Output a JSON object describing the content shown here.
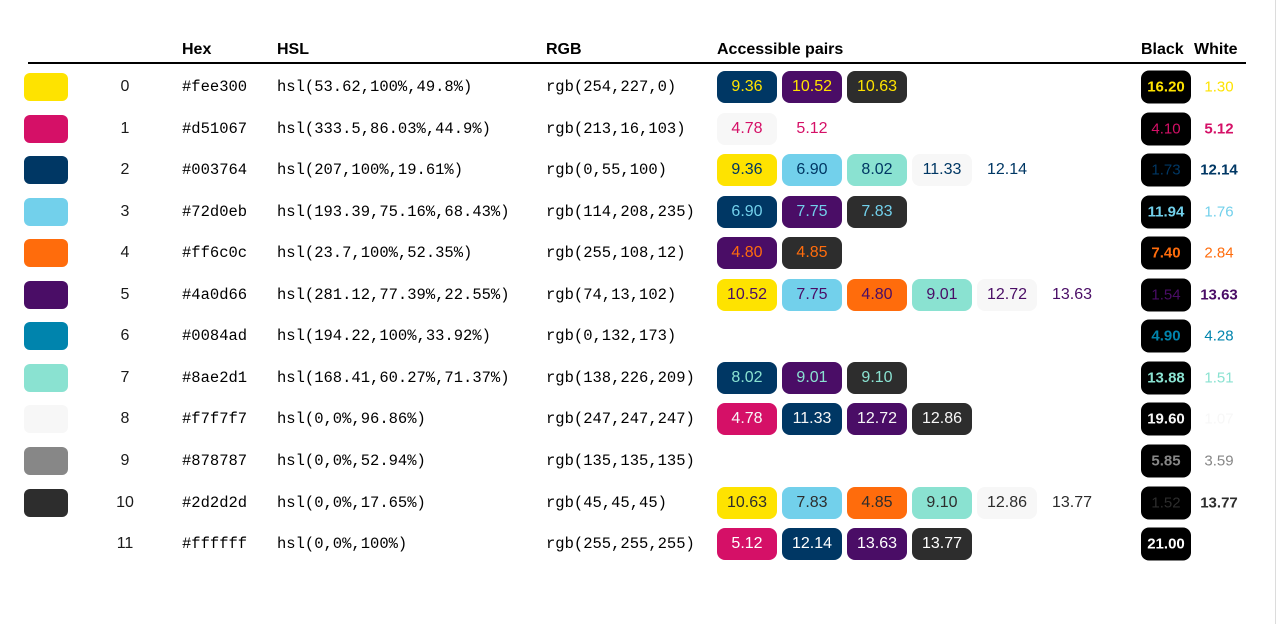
{
  "chart_data": {
    "type": "table",
    "headers": {
      "hex": "Hex",
      "hsl": "HSL",
      "rgb": "RGB",
      "pairs": "Accessible pairs",
      "black": "Black",
      "white": "White"
    },
    "reference_colors": {
      "black": "#000000",
      "white": "#ffffff"
    },
    "bold_min_ratio": 4.5,
    "colors": [
      {
        "index": "0",
        "hex": "#fee300",
        "hsl": "hsl(53.62,100%,49.8%)",
        "rgb": "rgb(254,227,0)",
        "pairs": [
          {
            "ratio": "9.36",
            "with": "#003764"
          },
          {
            "ratio": "10.52",
            "with": "#4a0d66"
          },
          {
            "ratio": "10.63",
            "with": "#2d2d2d"
          }
        ],
        "black": "16.20",
        "white": "1.30"
      },
      {
        "index": "1",
        "hex": "#d51067",
        "hsl": "hsl(333.5,86.03%,44.9%)",
        "rgb": "rgb(213,16,103)",
        "pairs": [
          {
            "ratio": "4.78",
            "with": "#f7f7f7"
          },
          {
            "ratio": "5.12",
            "with": "#ffffff"
          }
        ],
        "black": "4.10",
        "white": "5.12"
      },
      {
        "index": "2",
        "hex": "#003764",
        "hsl": "hsl(207,100%,19.61%)",
        "rgb": "rgb(0,55,100)",
        "pairs": [
          {
            "ratio": "9.36",
            "with": "#fee300"
          },
          {
            "ratio": "6.90",
            "with": "#72d0eb"
          },
          {
            "ratio": "8.02",
            "with": "#8ae2d1"
          },
          {
            "ratio": "11.33",
            "with": "#f7f7f7"
          },
          {
            "ratio": "12.14",
            "with": "#ffffff"
          }
        ],
        "black": "1.73",
        "white": "12.14"
      },
      {
        "index": "3",
        "hex": "#72d0eb",
        "hsl": "hsl(193.39,75.16%,68.43%)",
        "rgb": "rgb(114,208,235)",
        "pairs": [
          {
            "ratio": "6.90",
            "with": "#003764"
          },
          {
            "ratio": "7.75",
            "with": "#4a0d66"
          },
          {
            "ratio": "7.83",
            "with": "#2d2d2d"
          }
        ],
        "black": "11.94",
        "white": "1.76"
      },
      {
        "index": "4",
        "hex": "#ff6c0c",
        "hsl": "hsl(23.7,100%,52.35%)",
        "rgb": "rgb(255,108,12)",
        "pairs": [
          {
            "ratio": "4.80",
            "with": "#4a0d66"
          },
          {
            "ratio": "4.85",
            "with": "#2d2d2d"
          }
        ],
        "black": "7.40",
        "white": "2.84"
      },
      {
        "index": "5",
        "hex": "#4a0d66",
        "hsl": "hsl(281.12,77.39%,22.55%)",
        "rgb": "rgb(74,13,102)",
        "pairs": [
          {
            "ratio": "10.52",
            "with": "#fee300"
          },
          {
            "ratio": "7.75",
            "with": "#72d0eb"
          },
          {
            "ratio": "4.80",
            "with": "#ff6c0c"
          },
          {
            "ratio": "9.01",
            "with": "#8ae2d1"
          },
          {
            "ratio": "12.72",
            "with": "#f7f7f7"
          },
          {
            "ratio": "13.63",
            "with": "#ffffff"
          }
        ],
        "black": "1.54",
        "white": "13.63"
      },
      {
        "index": "6",
        "hex": "#0084ad",
        "hsl": "hsl(194.22,100%,33.92%)",
        "rgb": "rgb(0,132,173)",
        "pairs": [],
        "black": "4.90",
        "white": "4.28"
      },
      {
        "index": "7",
        "hex": "#8ae2d1",
        "hsl": "hsl(168.41,60.27%,71.37%)",
        "rgb": "rgb(138,226,209)",
        "pairs": [
          {
            "ratio": "8.02",
            "with": "#003764"
          },
          {
            "ratio": "9.01",
            "with": "#4a0d66"
          },
          {
            "ratio": "9.10",
            "with": "#2d2d2d"
          }
        ],
        "black": "13.88",
        "white": "1.51"
      },
      {
        "index": "8",
        "hex": "#f7f7f7",
        "hsl": "hsl(0,0%,96.86%)",
        "rgb": "rgb(247,247,247)",
        "pairs": [
          {
            "ratio": "4.78",
            "with": "#d51067"
          },
          {
            "ratio": "11.33",
            "with": "#003764"
          },
          {
            "ratio": "12.72",
            "with": "#4a0d66"
          },
          {
            "ratio": "12.86",
            "with": "#2d2d2d"
          }
        ],
        "black": "19.60",
        "white": "1.07"
      },
      {
        "index": "9",
        "hex": "#878787",
        "hsl": "hsl(0,0%,52.94%)",
        "rgb": "rgb(135,135,135)",
        "pairs": [],
        "black": "5.85",
        "white": "3.59"
      },
      {
        "index": "10",
        "hex": "#2d2d2d",
        "hsl": "hsl(0,0%,17.65%)",
        "rgb": "rgb(45,45,45)",
        "pairs": [
          {
            "ratio": "10.63",
            "with": "#fee300"
          },
          {
            "ratio": "7.83",
            "with": "#72d0eb"
          },
          {
            "ratio": "4.85",
            "with": "#ff6c0c"
          },
          {
            "ratio": "9.10",
            "with": "#8ae2d1"
          },
          {
            "ratio": "12.86",
            "with": "#f7f7f7"
          },
          {
            "ratio": "13.77",
            "with": "#ffffff"
          }
        ],
        "black": "1.52",
        "white": "13.77"
      },
      {
        "index": "11",
        "hex": "#ffffff",
        "hsl": "hsl(0,0%,100%)",
        "rgb": "rgb(255,255,255)",
        "pairs": [
          {
            "ratio": "5.12",
            "with": "#d51067"
          },
          {
            "ratio": "12.14",
            "with": "#003764"
          },
          {
            "ratio": "13.63",
            "with": "#4a0d66"
          },
          {
            "ratio": "13.77",
            "with": "#2d2d2d"
          }
        ],
        "black": "21.00",
        "white": ""
      }
    ]
  }
}
